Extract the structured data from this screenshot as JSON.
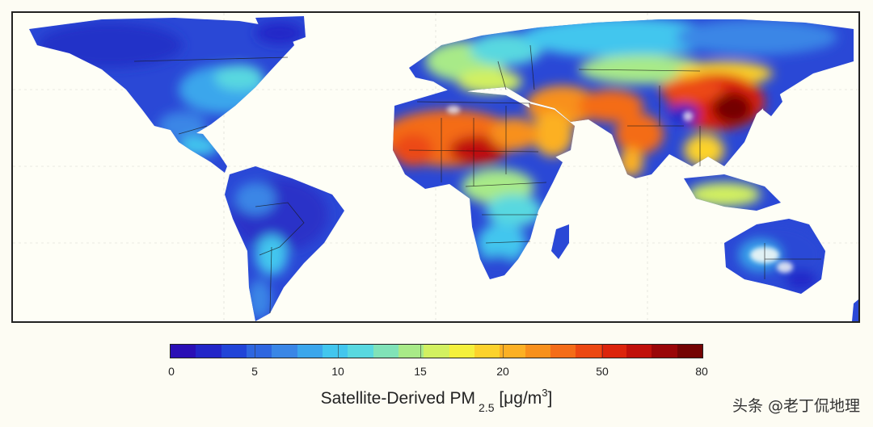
{
  "colorbar": {
    "ticks": [
      "0",
      "5",
      "10",
      "15",
      "20",
      "50",
      "80"
    ],
    "title_prefix": "Satellite-Derived PM",
    "title_subscript": "2.5",
    "unit_prefix": "[μg/m",
    "unit_superscript": "3",
    "unit_suffix": "]",
    "colors": [
      "#2a0fb6",
      "#2226c8",
      "#2144d8",
      "#2e66e0",
      "#3a86e6",
      "#3ba6ec",
      "#42c6ee",
      "#58d8e0",
      "#80e2b8",
      "#a8ea88",
      "#d2f060",
      "#f4f03c",
      "#fcd22c",
      "#fcb024",
      "#f8901c",
      "#f46c18",
      "#ec4812",
      "#dc240c",
      "#c0100a",
      "#9a0608",
      "#740404"
    ]
  },
  "watermark": "头条 @老丁侃地理",
  "map": {
    "ocean_color": "#fefef6",
    "land_base_color": "#2a48d6",
    "border_color": "#1a1a1a"
  }
}
